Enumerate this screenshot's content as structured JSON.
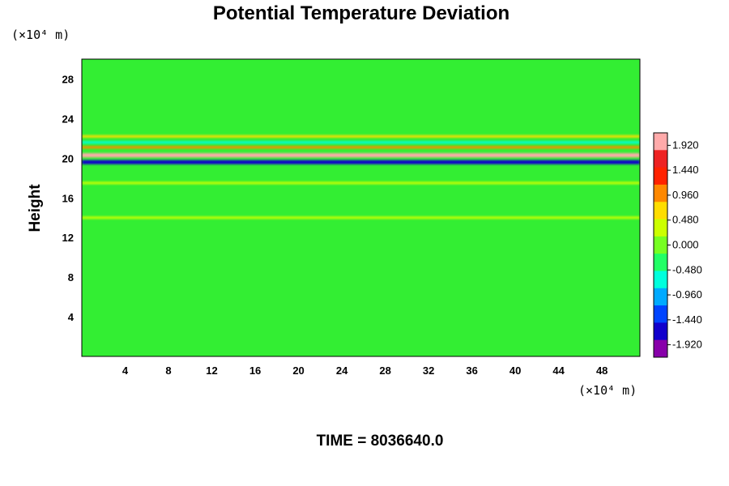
{
  "chart_data": {
    "type": "heatmap",
    "title": "Potential Temperature Deviation",
    "ylabel": "Height",
    "x_unit_label": "(×10⁴ m)",
    "y_unit_label": "(×10⁴ m)",
    "time_label": "TIME = 8036640.0",
    "xlim": [
      0,
      51.5
    ],
    "ylim": [
      0,
      30
    ],
    "x_ticks": [
      4,
      8,
      12,
      16,
      20,
      24,
      28,
      32,
      36,
      40,
      44,
      48
    ],
    "y_ticks": [
      4,
      8,
      12,
      16,
      20,
      24,
      28
    ],
    "colorbar": {
      "range": [
        -2.16,
        2.16
      ],
      "tick_values": [
        1.92,
        1.44,
        0.96,
        0.48,
        0.0,
        -0.48,
        -0.96,
        -1.44,
        -1.92
      ],
      "tick_labels": [
        "1.920",
        "1.440",
        "0.960",
        "0.480",
        "0.000",
        "-0.480",
        "-0.960",
        "-1.440",
        "-1.920"
      ]
    },
    "features": [
      {
        "y": 20.3,
        "value": 2.0
      },
      {
        "y": 19.6,
        "value": -1.9
      },
      {
        "y": 21.1,
        "value": 1.1
      },
      {
        "y": 21.6,
        "value": -0.9
      },
      {
        "y": 22.2,
        "value": 0.6
      },
      {
        "y": 17.5,
        "value": 0.4
      },
      {
        "y": 14.0,
        "value": 0.3
      }
    ],
    "colors": {
      "colorbar_stops": [
        "#8800aa",
        "#1100cc",
        "#0044ff",
        "#00aaff",
        "#00ffdd",
        "#22ff66",
        "#77ff22",
        "#ccff00",
        "#ffdd00",
        "#ff8800",
        "#ff2200",
        "#ee2222",
        "#ffaaaa"
      ],
      "field_background": "#33ee33"
    }
  }
}
